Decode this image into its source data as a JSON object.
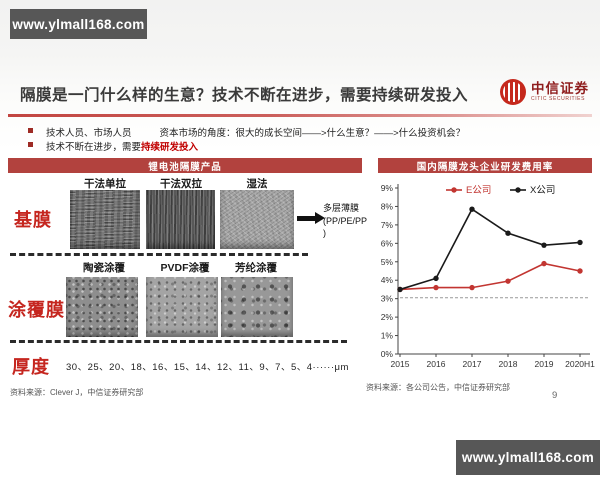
{
  "watermark_top": "www.ylmall168.com",
  "watermark_bottom": "www.ylmall168.com",
  "header": {
    "title": "隔膜是一门什么样的生意？技术不断在进步，需要持续研发投入",
    "logo_cn": "中信证券",
    "logo_en": "CITIC SECURITIES"
  },
  "bullets": {
    "b1_part1": "技术人员、市场人员",
    "b1_part2": "资本市场的角度：很大的成长空间——>什么生意？——>什么投资机会？",
    "b2_prefix": "技术不断在进步，需要",
    "b2_highlight": "持续研发投入"
  },
  "left_panel": {
    "header": "锂电池隔膜产品",
    "base_film": {
      "label": "基膜",
      "columns": [
        "干法单拉",
        "干法双拉",
        "湿法"
      ],
      "note_lines": [
        "多层薄膜",
        "(PP/PE/PP",
        ")"
      ]
    },
    "coated_film": {
      "label": "涂覆膜",
      "columns": [
        "陶瓷涂覆",
        "PVDF涂覆",
        "芳纶涂覆"
      ]
    },
    "thickness": {
      "label": "厚度",
      "value": "30、25、20、18、16、15、14、12、11、9、7、5、4······μm"
    },
    "source": "资料来源：Clever J，中信证券研究部"
  },
  "right_panel": {
    "header": "国内隔膜龙头企业研发费用率",
    "source": "资料来源：各公司公告，中信证券研究部",
    "page_number": "9"
  },
  "chart_data": {
    "type": "line",
    "title": "国内隔膜龙头企业研发费用率",
    "x": [
      "2015",
      "2016",
      "2017",
      "2018",
      "2019",
      "2020H1"
    ],
    "series": [
      {
        "name": "E公司",
        "color": "#c23531",
        "values": [
          3.5,
          3.6,
          3.6,
          3.95,
          4.9,
          4.5
        ]
      },
      {
        "name": "X公司",
        "color": "#1a1a1a",
        "values": [
          3.5,
          4.1,
          7.85,
          6.55,
          5.9,
          6.05
        ]
      }
    ],
    "ylim": [
      0,
      9
    ],
    "ytick_step": 1,
    "ytick_suffix": "%",
    "xlabel": "",
    "ylabel": "",
    "reference_line": {
      "value": 3.05,
      "color": "#999999",
      "style": "dashed"
    },
    "legend_position": "top",
    "grid": false
  },
  "colors": {
    "bar_red": "#b2423e",
    "highlight_red": "#c00000",
    "label_red": "#c5261f",
    "watermark_bg": "#575757"
  }
}
